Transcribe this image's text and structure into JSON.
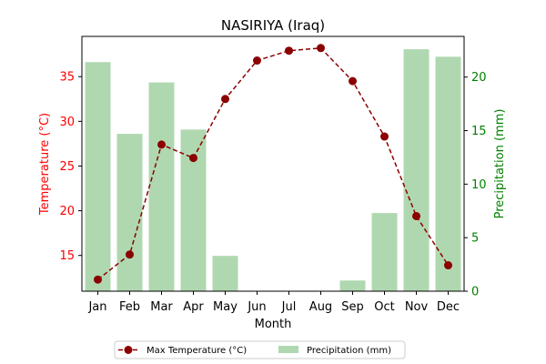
{
  "chart_data": {
    "type": "bar+line",
    "title": "NASIRIYA (Iraq)",
    "xlabel": "Month",
    "ylabel_left": "Temperature (°C)",
    "ylabel_right": "Precipitation (mm)",
    "categories": [
      "Jan",
      "Feb",
      "Mar",
      "Apr",
      "May",
      "Jun",
      "Jul",
      "Aug",
      "Sep",
      "Oct",
      "Nov",
      "Dec"
    ],
    "series": [
      {
        "name": "Max Temperature (°C)",
        "type": "line",
        "axis": "left",
        "values": [
          12.3,
          15.1,
          27.4,
          25.9,
          32.5,
          36.8,
          37.9,
          38.2,
          34.5,
          28.3,
          19.4,
          13.9
        ],
        "color": "#8b0000"
      },
      {
        "name": "Precipitation (mm)",
        "type": "bar",
        "axis": "right",
        "values": [
          21.4,
          14.7,
          19.5,
          15.1,
          3.3,
          0,
          0,
          0,
          1.0,
          7.3,
          22.6,
          21.9
        ],
        "color": "#b0d8b0"
      }
    ],
    "ylim_left": [
      11.0,
      39.5
    ],
    "yticks_left": [
      15,
      20,
      25,
      30,
      35
    ],
    "ylim_right": [
      0,
      23.8
    ],
    "yticks_right": [
      0,
      5,
      10,
      15,
      20
    ],
    "left_axis_color": "#ff0000",
    "right_axis_color": "#008000",
    "grid": false,
    "legend_position": "bottom-center"
  }
}
